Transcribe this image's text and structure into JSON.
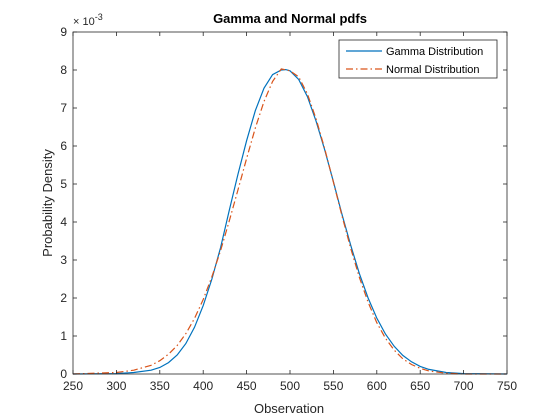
{
  "chart_data": {
    "type": "line",
    "title": "Gamma and Normal pdfs",
    "xlabel": "Observation",
    "ylabel": "Probability Density",
    "xlim": [
      250,
      750
    ],
    "ylim": [
      0,
      0.009
    ],
    "xticks": [
      250,
      300,
      350,
      400,
      450,
      500,
      550,
      600,
      650,
      700,
      750
    ],
    "yticks": [
      0,
      1,
      2,
      3,
      4,
      5,
      6,
      7,
      8,
      9
    ],
    "ytick_labels": [
      "0",
      "1",
      "2",
      "3",
      "4",
      "5",
      "6",
      "7",
      "8",
      "9"
    ],
    "y_exponent_label": "× 10",
    "y_exponent_power": "-3",
    "y_exponent_value": 0.001,
    "grid": false,
    "legend_position": "top-right",
    "series": [
      {
        "name": "Gamma Distribution",
        "color": "#0072BD",
        "style": "solid",
        "x": [
          250,
          300,
          320,
          340,
          350,
          360,
          370,
          380,
          390,
          400,
          410,
          420,
          430,
          440,
          450,
          460,
          470,
          480,
          490,
          495,
          500,
          510,
          520,
          530,
          540,
          550,
          560,
          570,
          580,
          590,
          600,
          610,
          620,
          630,
          640,
          650,
          660,
          680,
          700,
          750
        ],
        "y": [
          0.0,
          1e-05,
          4e-05,
          0.0001,
          0.00017,
          0.0003,
          0.0005,
          0.0008,
          0.00123,
          0.0018,
          0.0025,
          0.00333,
          0.0043,
          0.00525,
          0.00614,
          0.00693,
          0.00752,
          0.00788,
          0.008,
          0.00801,
          0.00798,
          0.00775,
          0.0073,
          0.00666,
          0.0059,
          0.00506,
          0.00419,
          0.00338,
          0.00264,
          0.002,
          0.00147,
          0.00105,
          0.00073,
          0.00049,
          0.00032,
          0.0002,
          0.00012,
          4e-05,
          1e-05,
          0.0
        ]
      },
      {
        "name": "Normal Distribution",
        "color": "#D95319",
        "style": "dashdot",
        "x": [
          250,
          300,
          320,
          340,
          350,
          360,
          370,
          380,
          390,
          400,
          410,
          420,
          430,
          440,
          450,
          460,
          470,
          480,
          490,
          500,
          510,
          520,
          530,
          540,
          550,
          560,
          570,
          580,
          590,
          600,
          610,
          620,
          630,
          640,
          650,
          660,
          680,
          700,
          750
        ],
        "y": [
          0.0,
          4e-05,
          0.0001,
          0.00023,
          0.00035,
          0.00052,
          0.00075,
          0.00106,
          0.00146,
          0.00196,
          0.00256,
          0.00325,
          0.00402,
          0.00484,
          0.00567,
          0.00647,
          0.00717,
          0.0077,
          0.00803,
          0.00798,
          0.00782,
          0.00737,
          0.00672,
          0.00593,
          0.00505,
          0.00415,
          0.0033,
          0.00254,
          0.00189,
          0.00135,
          0.00094,
          0.00063,
          0.0004,
          0.00025,
          0.00015,
          8e-05,
          2e-05,
          0.0,
          0.0
        ]
      }
    ]
  }
}
